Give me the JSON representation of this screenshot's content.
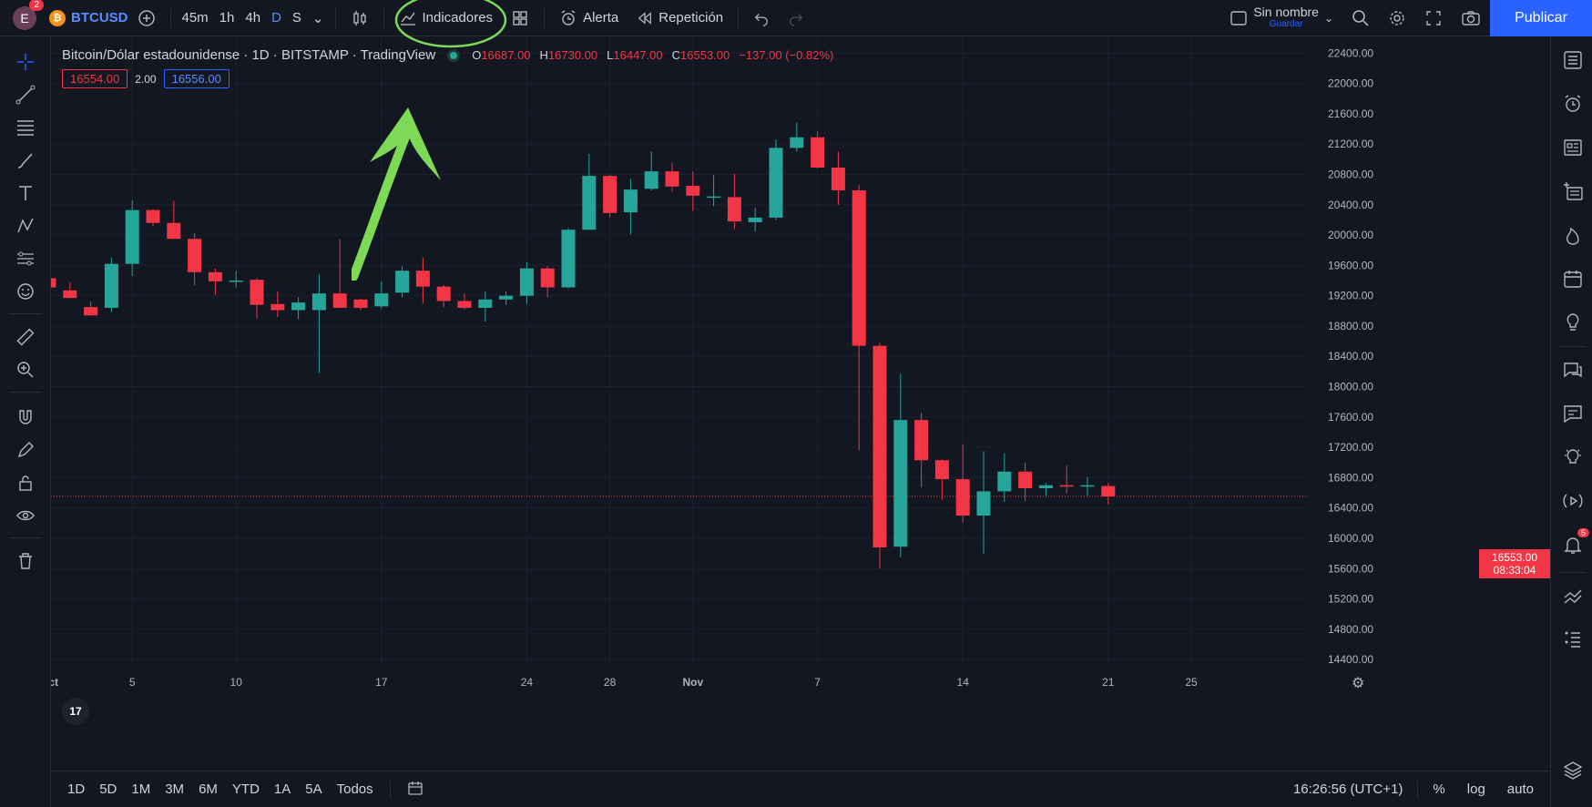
{
  "topbar": {
    "avatar_initial": "E",
    "avatar_badge": "2",
    "symbol": "BTCUSD",
    "timeframes": [
      "45m",
      "1h",
      "4h",
      "D",
      "S"
    ],
    "active_timeframe": "D",
    "indicators_label": "Indicadores",
    "alert_label": "Alerta",
    "replay_label": "Repetición",
    "layout_name": "Sin nombre",
    "layout_save": "Guardar",
    "publish_label": "Publicar"
  },
  "legend": {
    "title": "Bitcoin/Dólar estadounidense · 1D · BITSTAMP · TradingView",
    "open_label": "O",
    "open": "16687.00",
    "high_label": "H",
    "high": "16730.00",
    "low_label": "L",
    "low": "16447.00",
    "close_label": "C",
    "close": "16553.00",
    "change": "−137.00 (−0.82%)"
  },
  "order": {
    "sell": "16554.00",
    "spread": "2.00",
    "buy": "16556.00"
  },
  "price_label": {
    "price": "16553.00",
    "countdown": "08:33:04"
  },
  "chart_data": {
    "type": "candlestick",
    "y_ticks": [
      "22400.00",
      "22000.00",
      "21600.00",
      "21200.00",
      "20800.00",
      "20400.00",
      "20000.00",
      "19600.00",
      "19200.00",
      "18800.00",
      "18400.00",
      "18000.00",
      "17600.00",
      "17200.00",
      "16800.00",
      "16400.00",
      "16000.00",
      "15600.00",
      "15200.00",
      "14800.00",
      "14400.00"
    ],
    "ylim": [
      14330,
      22620
    ],
    "x_ticks": [
      {
        "label": "Oct",
        "i": 0,
        "bold": true
      },
      {
        "label": "5",
        "i": 4
      },
      {
        "label": "10",
        "i": 9
      },
      {
        "label": "17",
        "i": 16
      },
      {
        "label": "24",
        "i": 23
      },
      {
        "label": "28",
        "i": 27
      },
      {
        "label": "Nov",
        "i": 31,
        "bold": true
      },
      {
        "label": "7",
        "i": 37
      },
      {
        "label": "14",
        "i": 44
      },
      {
        "label": "21",
        "i": 51
      },
      {
        "label": "25",
        "i": 55
      }
    ],
    "candles": [
      {
        "o": 19430,
        "h": 19480,
        "l": 19250,
        "c": 19310
      },
      {
        "o": 19270,
        "h": 19380,
        "l": 19170,
        "c": 19170
      },
      {
        "o": 19050,
        "h": 19120,
        "l": 18940,
        "c": 18940
      },
      {
        "o": 19040,
        "h": 19700,
        "l": 18980,
        "c": 19620
      },
      {
        "o": 19620,
        "h": 20460,
        "l": 19460,
        "c": 20330
      },
      {
        "o": 20330,
        "h": 20340,
        "l": 20120,
        "c": 20160
      },
      {
        "o": 20160,
        "h": 20450,
        "l": 19960,
        "c": 19950
      },
      {
        "o": 19950,
        "h": 20030,
        "l": 19340,
        "c": 19510
      },
      {
        "o": 19510,
        "h": 19560,
        "l": 19210,
        "c": 19390
      },
      {
        "o": 19400,
        "h": 19530,
        "l": 19310,
        "c": 19400
      },
      {
        "o": 19410,
        "h": 19430,
        "l": 18900,
        "c": 19080
      },
      {
        "o": 19090,
        "h": 19260,
        "l": 18920,
        "c": 19010
      },
      {
        "o": 19010,
        "h": 19180,
        "l": 18890,
        "c": 19110
      },
      {
        "o": 19010,
        "h": 19480,
        "l": 18180,
        "c": 19230
      },
      {
        "o": 19230,
        "h": 19940,
        "l": 19060,
        "c": 19040
      },
      {
        "o": 19150,
        "h": 19160,
        "l": 19010,
        "c": 19040
      },
      {
        "o": 19060,
        "h": 19390,
        "l": 19030,
        "c": 19230
      },
      {
        "o": 19240,
        "h": 19590,
        "l": 19180,
        "c": 19530
      },
      {
        "o": 19530,
        "h": 19700,
        "l": 19100,
        "c": 19320
      },
      {
        "o": 19320,
        "h": 19340,
        "l": 19050,
        "c": 19130
      },
      {
        "o": 19130,
        "h": 19230,
        "l": 19020,
        "c": 19040
      },
      {
        "o": 19040,
        "h": 19260,
        "l": 18860,
        "c": 19150
      },
      {
        "o": 19150,
        "h": 19260,
        "l": 19080,
        "c": 19200
      },
      {
        "o": 19200,
        "h": 19640,
        "l": 19090,
        "c": 19560
      },
      {
        "o": 19560,
        "h": 19590,
        "l": 19180,
        "c": 19310
      },
      {
        "o": 19310,
        "h": 20090,
        "l": 19300,
        "c": 20070
      },
      {
        "o": 20070,
        "h": 21070,
        "l": 20070,
        "c": 20780
      },
      {
        "o": 20780,
        "h": 20790,
        "l": 20230,
        "c": 20290
      },
      {
        "o": 20300,
        "h": 20740,
        "l": 20010,
        "c": 20600
      },
      {
        "o": 20610,
        "h": 21100,
        "l": 20590,
        "c": 20840
      },
      {
        "o": 20840,
        "h": 20950,
        "l": 20570,
        "c": 20640
      },
      {
        "o": 20650,
        "h": 20840,
        "l": 20320,
        "c": 20520
      },
      {
        "o": 20510,
        "h": 20790,
        "l": 20380,
        "c": 20510
      },
      {
        "o": 20500,
        "h": 20810,
        "l": 20080,
        "c": 20180
      },
      {
        "o": 20170,
        "h": 20360,
        "l": 20050,
        "c": 20230
      },
      {
        "o": 20230,
        "h": 21260,
        "l": 20200,
        "c": 21150
      },
      {
        "o": 21150,
        "h": 21480,
        "l": 21100,
        "c": 21290
      },
      {
        "o": 21290,
        "h": 21370,
        "l": 20880,
        "c": 20890
      },
      {
        "o": 20890,
        "h": 21100,
        "l": 20400,
        "c": 20590
      },
      {
        "o": 20590,
        "h": 20660,
        "l": 17160,
        "c": 18540
      },
      {
        "o": 18540,
        "h": 18580,
        "l": 15600,
        "c": 15880
      },
      {
        "o": 15890,
        "h": 18170,
        "l": 15750,
        "c": 17560
      },
      {
        "o": 17560,
        "h": 17660,
        "l": 16670,
        "c": 17030
      },
      {
        "o": 17030,
        "h": 17040,
        "l": 16510,
        "c": 16780
      },
      {
        "o": 16780,
        "h": 17240,
        "l": 16210,
        "c": 16300
      },
      {
        "o": 16300,
        "h": 17150,
        "l": 15800,
        "c": 16620
      },
      {
        "o": 16620,
        "h": 17120,
        "l": 16480,
        "c": 16880
      },
      {
        "o": 16880,
        "h": 17000,
        "l": 16490,
        "c": 16660
      },
      {
        "o": 16660,
        "h": 16730,
        "l": 16550,
        "c": 16700
      },
      {
        "o": 16700,
        "h": 16960,
        "l": 16590,
        "c": 16690
      },
      {
        "o": 16690,
        "h": 16810,
        "l": 16560,
        "c": 16700
      },
      {
        "o": 16690,
        "h": 16730,
        "l": 16450,
        "c": 16553
      }
    ]
  },
  "bottombar": {
    "ranges": [
      "1D",
      "5D",
      "1M",
      "3M",
      "6M",
      "YTD",
      "1A",
      "5A",
      "Todos"
    ],
    "time": "16:26:56 (UTC+1)",
    "pct": "%",
    "log": "log",
    "auto": "auto"
  },
  "colors": {
    "up": "#26a69a",
    "down": "#f23645",
    "accent": "#2962ff",
    "annotation": "#7ed957"
  }
}
